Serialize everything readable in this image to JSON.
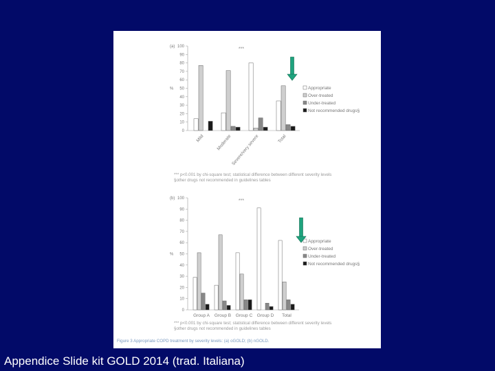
{
  "footer_text": "Appendice Slide kit GOLD 2014 (trad. Italiana)",
  "colors": {
    "background": "#020a68",
    "arrow_fill": "#1fa37e",
    "arrow_stroke": "#0d6a4c"
  },
  "chart_data": [
    {
      "type": "bar",
      "panel_label": "(a)",
      "ylabel": "%",
      "ylim": [
        0,
        100
      ],
      "yticks": [
        0,
        10,
        20,
        30,
        40,
        50,
        60,
        70,
        80,
        90,
        100
      ],
      "categories": [
        "Mild",
        "Moderate",
        "Severe/very severe",
        "Total"
      ],
      "category_label_rotation": "rotated",
      "significance": "***",
      "series": [
        {
          "name": "Appropriate",
          "color": "#ffffff",
          "values": [
            14,
            21,
            80,
            35
          ]
        },
        {
          "name": "Over-treated",
          "color": "#cfcfcf",
          "values": [
            77,
            71,
            3,
            53
          ]
        },
        {
          "name": "Under-treated",
          "color": "#888888",
          "values": [
            0,
            5,
            15,
            7
          ]
        },
        {
          "name": "Not recommended drugs§",
          "color": "#1a1a1a",
          "values": [
            11,
            4,
            4,
            5
          ]
        }
      ],
      "legend_position": "right",
      "footnotes": [
        "*** p<0.001 by chi-square test; statistical difference between different severity levels",
        "§other drugs not recommended in guidelines tables"
      ]
    },
    {
      "type": "bar",
      "panel_label": "(b)",
      "ylabel": "%",
      "ylim": [
        0,
        100
      ],
      "yticks": [
        0,
        10,
        20,
        30,
        40,
        50,
        60,
        70,
        80,
        90,
        100
      ],
      "categories": [
        "Group A",
        "Group B",
        "Group C",
        "Group D",
        "Total"
      ],
      "significance": "***",
      "series": [
        {
          "name": "Appropriate",
          "color": "#ffffff",
          "values": [
            29,
            22,
            51,
            91,
            62
          ]
        },
        {
          "name": "Over-treated",
          "color": "#cfcfcf",
          "values": [
            51,
            67,
            32,
            0,
            25
          ]
        },
        {
          "name": "Under-treated",
          "color": "#888888",
          "values": [
            15,
            8,
            9,
            6,
            9
          ]
        },
        {
          "name": "Not recommended drugs§",
          "color": "#1a1a1a",
          "values": [
            5,
            4,
            9,
            3,
            5
          ]
        }
      ],
      "legend_position": "right",
      "footnotes": [
        "*** p<0.001 by chi-square test; statistical difference between different severity levels",
        "§other drugs not recommended in guidelines tables"
      ]
    }
  ],
  "caption": {
    "label": "Figure 3",
    "text": "Appropriate COPD treatment by severity levels: (a) oGOLD; (b) nGOLD."
  }
}
